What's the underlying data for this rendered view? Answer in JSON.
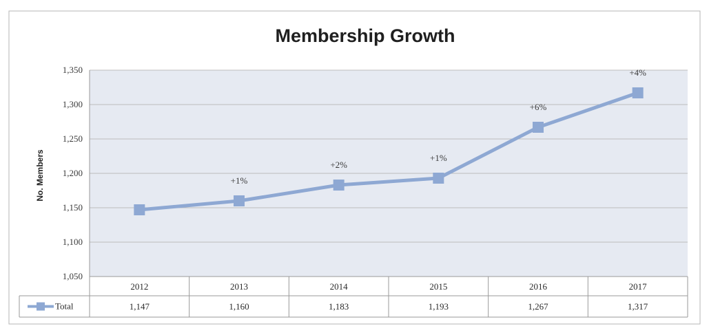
{
  "chart_data": {
    "type": "line",
    "title": "Membership Growth",
    "xlabel": "",
    "ylabel": "No. Members",
    "categories": [
      "2012",
      "2013",
      "2014",
      "2015",
      "2016",
      "2017"
    ],
    "series": [
      {
        "name": "Total",
        "values": [
          1147,
          1160,
          1183,
          1193,
          1267,
          1317
        ],
        "value_labels": [
          "1,147",
          "1,160",
          "1,183",
          "1,193",
          "1,267",
          "1,317"
        ],
        "change_labels": [
          "",
          "+1%",
          "+2%",
          "+1%",
          "+6%",
          "+4%"
        ]
      }
    ],
    "ylim": [
      1050,
      1350
    ],
    "yticks": [
      1050,
      1100,
      1150,
      1200,
      1250,
      1300,
      1350
    ],
    "ytick_labels": [
      "1,050",
      "1,100",
      "1,150",
      "1,200",
      "1,250",
      "1,300",
      "1,350"
    ],
    "grid": true,
    "legend": "data-table-left",
    "data_table": true,
    "colors": {
      "series": "#8ea8d3",
      "plot_background": "#e6eaf2",
      "grid": "#bcbcbc",
      "border": "#9a9a9a"
    }
  }
}
